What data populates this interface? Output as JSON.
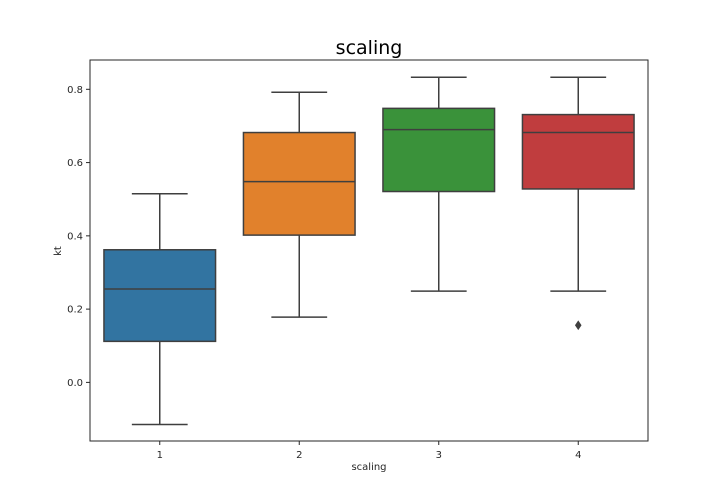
{
  "chart_data": {
    "type": "box",
    "title": "scaling",
    "xlabel": "scaling",
    "ylabel": "kt",
    "ylim": [
      -0.16,
      0.88
    ],
    "yticks": [
      0.0,
      0.2,
      0.4,
      0.6,
      0.8
    ],
    "ytick_labels": [
      "0.0",
      "0.2",
      "0.4",
      "0.6",
      "0.8"
    ],
    "grid": false,
    "categories": [
      "1",
      "2",
      "3",
      "4"
    ],
    "boxes": [
      {
        "category": "1",
        "whisker_low": -0.115,
        "q1": 0.112,
        "median": 0.255,
        "q3": 0.362,
        "whisker_high": 0.515,
        "outliers": [],
        "color": "#3274a1"
      },
      {
        "category": "2",
        "whisker_low": 0.178,
        "q1": 0.402,
        "median": 0.548,
        "q3": 0.682,
        "whisker_high": 0.792,
        "outliers": [],
        "color": "#e1812c"
      },
      {
        "category": "3",
        "whisker_low": 0.249,
        "q1": 0.521,
        "median": 0.69,
        "q3": 0.748,
        "whisker_high": 0.833,
        "outliers": [],
        "color": "#3a923a"
      },
      {
        "category": "4",
        "whisker_low": 0.249,
        "q1": 0.528,
        "median": 0.682,
        "q3": 0.731,
        "whisker_high": 0.833,
        "outliers": [
          0.156
        ],
        "color": "#c03d3e"
      }
    ]
  }
}
